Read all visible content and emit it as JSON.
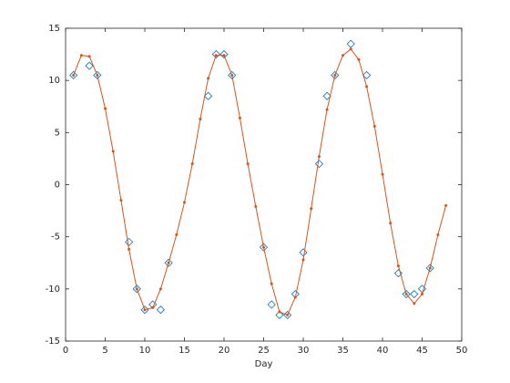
{
  "chart_data": {
    "type": "line",
    "xlabel": "Day",
    "xlim": [
      0,
      50
    ],
    "xticks": [
      0,
      5,
      10,
      15,
      20,
      25,
      30,
      35,
      40,
      45,
      50
    ],
    "ylim": [
      -15,
      15
    ],
    "yticks": [
      -15,
      -10,
      -5,
      0,
      5,
      10,
      15
    ],
    "grid": false,
    "series": [
      {
        "color": "#0072bd",
        "marker": "diamond",
        "linestyle": "none",
        "x": [
          1,
          3,
          4,
          8,
          9,
          10,
          11,
          12,
          13,
          18,
          19,
          20,
          21,
          25,
          26,
          27,
          28,
          29,
          30,
          32,
          33,
          34,
          36,
          38,
          42,
          43,
          44,
          45,
          46
        ],
        "values": [
          10.5,
          11.4,
          10.5,
          -5.5,
          -10,
          -12,
          -11.5,
          -12,
          -7.5,
          8.5,
          12.5,
          12.5,
          10.5,
          -6,
          -11.5,
          -12.5,
          -12.5,
          -10.5,
          -6.5,
          2,
          8.5,
          10.5,
          13.5,
          10.5,
          -8.5,
          -10.5,
          -10.5,
          -10,
          -8
        ]
      },
      {
        "color": "#d95319",
        "marker": "dot",
        "linestyle": "solid",
        "x": [
          1,
          2,
          3,
          4,
          5,
          6,
          7,
          8,
          9,
          10,
          11,
          12,
          13,
          14,
          15,
          16,
          17,
          18,
          19,
          20,
          21,
          22,
          23,
          24,
          25,
          26,
          27,
          28,
          29,
          30,
          31,
          32,
          33,
          34,
          35,
          36,
          37,
          38,
          39,
          40,
          41,
          42,
          43,
          44,
          45,
          46,
          47,
          48
        ],
        "values": [
          10.5,
          12.4,
          12.3,
          10.5,
          7.3,
          3.2,
          -1.5,
          -6.2,
          -10,
          -12,
          -11.8,
          -10,
          -7.5,
          -4.8,
          -1.7,
          2,
          6.3,
          10.2,
          12.4,
          12.4,
          10.5,
          6.4,
          2,
          -2.1,
          -6,
          -9.5,
          -12.2,
          -12.5,
          -10.8,
          -7.2,
          -2.3,
          2.7,
          7.2,
          10.5,
          12.4,
          13,
          12,
          9.4,
          5.6,
          1,
          -3.7,
          -7.8,
          -10.5,
          -11.4,
          -10.5,
          -8,
          -4.8,
          -2
        ]
      }
    ]
  }
}
